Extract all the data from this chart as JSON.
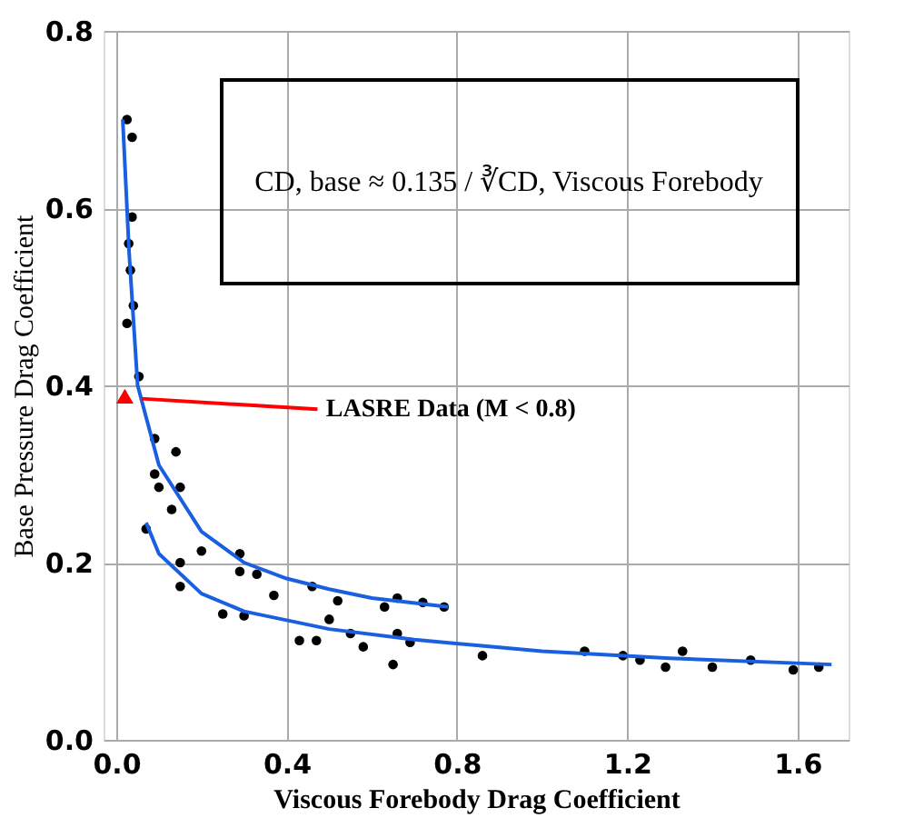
{
  "chart_data": {
    "type": "scatter",
    "xlabel": "Viscous Forebody Drag Coefficient",
    "ylabel": "Base Pressure Drag Coefficient",
    "annotations": [
      "CD, base ≈ 0.135 / ∛CD, Viscous Forebody"
    ],
    "xlim": [
      -0.03,
      1.72
    ],
    "ylim": [
      0,
      0.8
    ],
    "xticks": [
      {
        "value": 0,
        "label": "0.0"
      },
      0.4,
      0.8,
      1.2,
      1.6
    ],
    "yticks": [
      {
        "value": 0,
        "label": "0.0"
      },
      0.2,
      0.4,
      0.6,
      0.8
    ],
    "grid": true,
    "series": [
      {
        "color": "#000000",
        "marker": "circle",
        "x": [
          0.025,
          0.037,
          0.037,
          0.029,
          0.033,
          0.04,
          0.025,
          0.053,
          0.09,
          0.14,
          0.09,
          0.15,
          0.1,
          0.13,
          0.2,
          0.29,
          0.33,
          0.37,
          0.29,
          0.46,
          0.52,
          0.63,
          0.66,
          0.72,
          0.77,
          0.07,
          0.15,
          0.15,
          0.25,
          0.3,
          0.43,
          0.47,
          0.5,
          0.55,
          0.58,
          0.65,
          0.69,
          0.66,
          0.86,
          1.1,
          1.19,
          1.23,
          1.29,
          1.33,
          1.4,
          1.49,
          1.59,
          1.65
        ],
        "values": [
          0.7,
          0.68,
          0.59,
          0.56,
          0.53,
          0.49,
          0.47,
          0.41,
          0.34,
          0.325,
          0.3,
          0.285,
          0.285,
          0.26,
          0.213,
          0.21,
          0.187,
          0.163,
          0.19,
          0.173,
          0.157,
          0.15,
          0.16,
          0.155,
          0.15,
          0.238,
          0.173,
          0.2,
          0.142,
          0.14,
          0.112,
          0.112,
          0.136,
          0.12,
          0.105,
          0.085,
          0.11,
          0.12,
          0.095,
          0.1,
          0.095,
          0.09,
          0.082,
          0.1,
          0.082,
          0.09,
          0.079,
          0.082
        ]
      },
      {
        "type": "line",
        "color": "#1a5fe0",
        "x": [
          0.015,
          0.03,
          0.05,
          0.1,
          0.2,
          0.3,
          0.4,
          0.5,
          0.6,
          0.78
        ],
        "values": [
          0.7,
          0.55,
          0.4,
          0.31,
          0.235,
          0.2,
          0.182,
          0.17,
          0.16,
          0.15
        ]
      },
      {
        "type": "line",
        "color": "#1a5fe0",
        "x": [
          0.07,
          0.1,
          0.2,
          0.3,
          0.5,
          0.7,
          1.0,
          1.3,
          1.68
        ],
        "values": [
          0.245,
          0.21,
          0.165,
          0.145,
          0.125,
          0.113,
          0.1,
          0.092,
          0.085
        ]
      },
      {
        "type": "scatter",
        "name": "LASRE Data (M < 0.8)",
        "color": "#ff0000",
        "marker": "triangle",
        "x": [
          0.02
        ],
        "values": [
          0.385
        ]
      }
    ]
  }
}
